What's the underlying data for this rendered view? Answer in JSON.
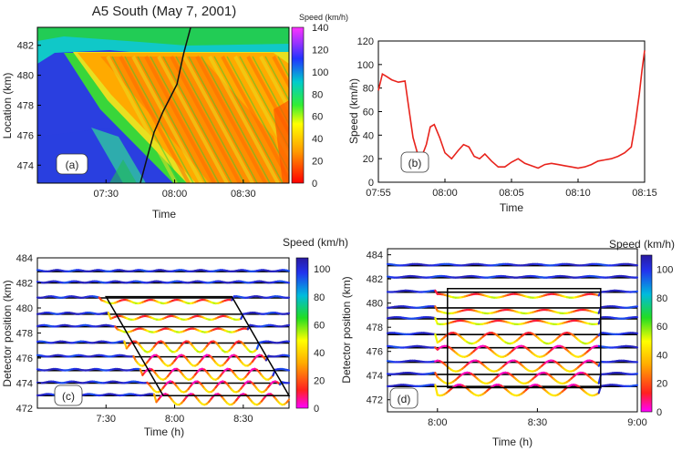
{
  "chart_data": [
    {
      "id": "a",
      "type": "heatmap",
      "title": "A5 South (May 7, 2001)",
      "panel_label": "(a)",
      "xlabel": "Time",
      "ylabel": "Location (km)",
      "x_ticks": [
        "07:30",
        "08:00",
        "08:30"
      ],
      "y_ticks": [
        474,
        476,
        478,
        480,
        482
      ],
      "xlim_min": [
        420,
        530
      ],
      "ylim": [
        472.8,
        483.2
      ],
      "colorbar": {
        "label": "Speed (km/h)",
        "ticks": [
          0,
          20,
          40,
          60,
          80,
          100,
          120,
          140
        ],
        "range": [
          0,
          140
        ]
      },
      "trajectory": [
        [
          465,
          472.8
        ],
        [
          468,
          474.5
        ],
        [
          471,
          476.2
        ],
        [
          475,
          477.6
        ],
        [
          481,
          479.4
        ],
        [
          484,
          481.5
        ],
        [
          487,
          483.2
        ]
      ]
    },
    {
      "id": "b",
      "type": "line",
      "panel_label": "(b)",
      "xlabel": "Time",
      "ylabel": "Speed (km/h)",
      "x_ticks": [
        "07:55",
        "08:00",
        "08:05",
        "08:10",
        "08:15"
      ],
      "y_ticks": [
        0,
        20,
        40,
        60,
        80,
        100,
        120
      ],
      "xlim_min": [
        475,
        495
      ],
      "ylim": [
        0,
        120
      ],
      "series": [
        {
          "color": "#e8231c",
          "x": [
            475.0,
            475.3,
            475.6,
            476.0,
            476.5,
            477.0,
            477.2,
            477.6,
            478.0,
            478.3,
            478.6,
            478.9,
            479.2,
            479.6,
            480.0,
            480.5,
            481.0,
            481.4,
            481.8,
            482.2,
            482.6,
            483.0,
            483.5,
            484.0,
            484.5,
            485.0,
            485.5,
            486.0,
            486.5,
            487.0,
            487.5,
            488.0,
            488.5,
            489.0,
            489.5,
            490.0,
            490.5,
            491.0,
            491.5,
            492.0,
            492.5,
            493.0,
            493.5,
            494.0,
            494.3,
            494.6,
            494.8,
            495.0
          ],
          "y": [
            78,
            92,
            90,
            87,
            85,
            86,
            70,
            38,
            22,
            23,
            32,
            47,
            49,
            38,
            25,
            20,
            27,
            32,
            30,
            22,
            20,
            24,
            18,
            13,
            13,
            17,
            20,
            16,
            14,
            12,
            15,
            16,
            15,
            14,
            13,
            12,
            13,
            15,
            18,
            19,
            20,
            22,
            25,
            30,
            50,
            75,
            95,
            112
          ]
        }
      ]
    },
    {
      "id": "c",
      "type": "line",
      "panel_label": "(c)",
      "xlabel": "Time (h)",
      "ylabel": "Detector position (km)",
      "x_ticks": [
        "7:30",
        "8:00",
        "8:30"
      ],
      "y_ticks": [
        472,
        474,
        476,
        478,
        480,
        482,
        484
      ],
      "xlim_min": [
        420,
        530
      ],
      "ylim": [
        472,
        484
      ],
      "colorbar": {
        "label": "Speed (km/h)",
        "ticks": [
          0,
          20,
          40,
          60,
          80,
          100
        ],
        "range": [
          0,
          108
        ]
      },
      "detectors": [
        482.9,
        482.0,
        480.8,
        479.5,
        478.5,
        477.2,
        476.1,
        475.0,
        474.0,
        473.0
      ],
      "box": [
        [
          450,
          480.9
        ],
        [
          505,
          480.9
        ],
        [
          530,
          473.0
        ],
        [
          475,
          473.0
        ]
      ]
    },
    {
      "id": "d",
      "type": "line",
      "panel_label": "(d)",
      "xlabel": "Time (h)",
      "ylabel": "Detector position (km)",
      "x_ticks": [
        "8:00",
        "8:30",
        "9:00"
      ],
      "y_ticks": [
        472,
        474,
        476,
        478,
        480,
        482,
        484
      ],
      "xlim_min": [
        465,
        540
      ],
      "ylim": [
        471,
        484.5
      ],
      "colorbar": {
        "label": "Speed (km/h)",
        "ticks": [
          0,
          20,
          40,
          60,
          80,
          100
        ],
        "range": [
          0,
          110
        ]
      },
      "detectors": [
        483.1,
        482.1,
        480.9,
        479.6,
        478.7,
        477.4,
        476.3,
        475.1,
        474.1,
        473.1
      ],
      "box": [
        [
          483,
          481.2
        ],
        [
          529,
          481.2
        ],
        [
          529,
          473.0
        ],
        [
          483,
          473.0
        ]
      ]
    }
  ]
}
